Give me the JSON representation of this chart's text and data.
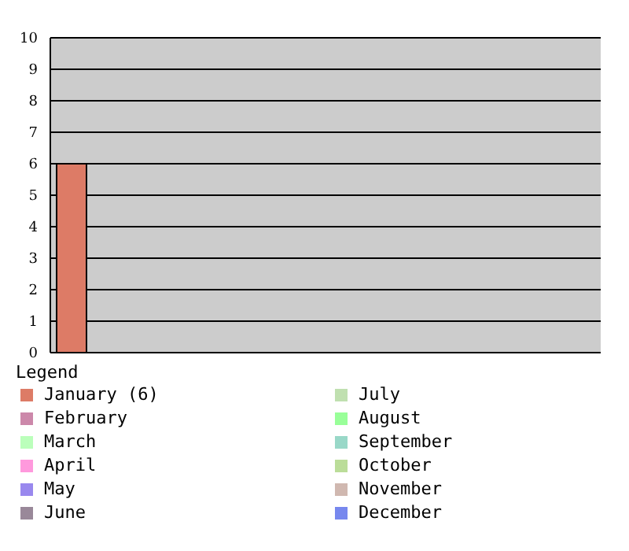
{
  "chart_data": {
    "type": "bar",
    "categories": [
      null
    ],
    "legend_title": "Legend",
    "legend": "bottom",
    "grid": "y",
    "ylim": [
      0,
      10
    ],
    "yticks": [
      0,
      1,
      2,
      3,
      4,
      5,
      6,
      7,
      8,
      9,
      10
    ],
    "series": [
      {
        "name": "January (6)",
        "color": "#dd7b66",
        "values": [
          6
        ]
      },
      {
        "name": "February",
        "color": "#cc88aa",
        "values": [
          0
        ]
      },
      {
        "name": "March",
        "color": "#bbffbb",
        "values": [
          0
        ]
      },
      {
        "name": "April",
        "color": "#ff99dd",
        "values": [
          0
        ]
      },
      {
        "name": "May",
        "color": "#9988ee",
        "values": [
          0
        ]
      },
      {
        "name": "June",
        "color": "#998899",
        "values": [
          0
        ]
      },
      {
        "name": "July",
        "color": "#c0e0b0",
        "values": [
          0
        ]
      },
      {
        "name": "August",
        "color": "#99ff99",
        "values": [
          0
        ]
      },
      {
        "name": "September",
        "color": "#99d8c8",
        "values": [
          0
        ]
      },
      {
        "name": "October",
        "color": "#bbdd99",
        "values": [
          0
        ]
      },
      {
        "name": "November",
        "color": "#d0b8b0",
        "values": [
          0
        ]
      },
      {
        "name": "December",
        "color": "#7788ee",
        "values": [
          0
        ]
      }
    ]
  }
}
